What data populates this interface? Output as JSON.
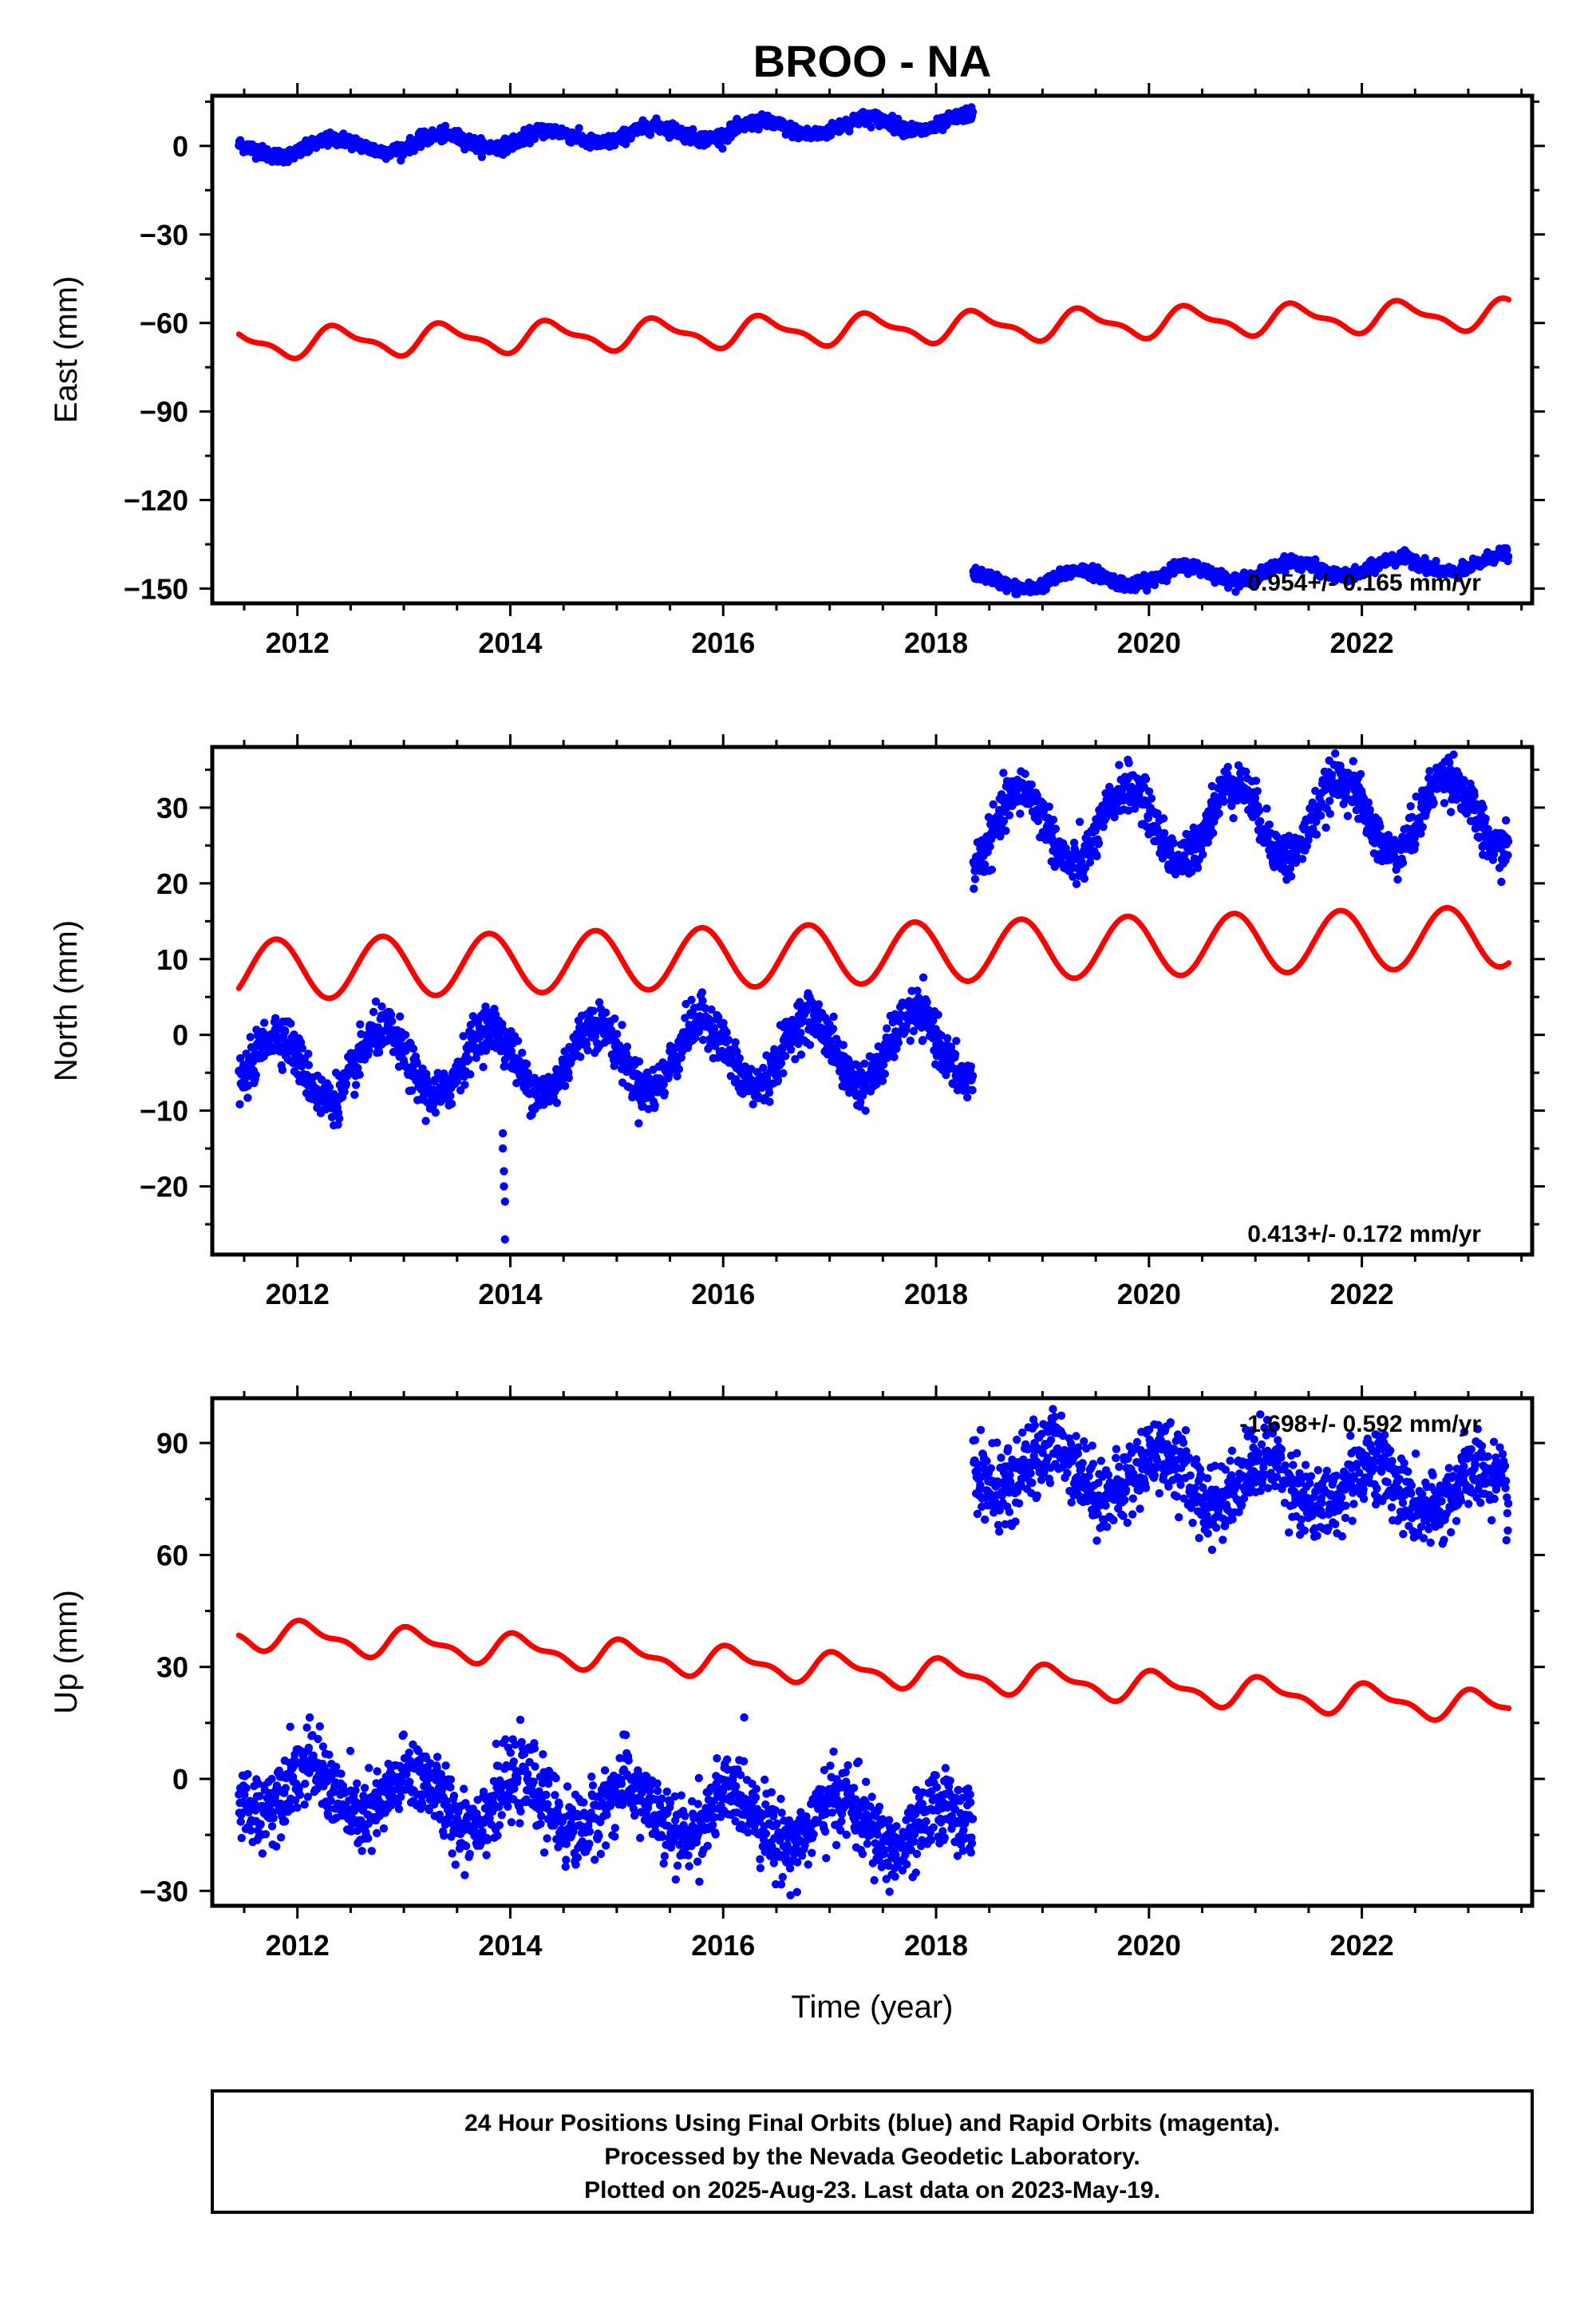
{
  "title": "BROO - NA",
  "xlabel": "Time (year)",
  "footer": {
    "line1": "24 Hour Positions Using Final Orbits (blue) and Rapid Orbits (magenta).",
    "line2": "Processed by the Nevada Geodetic Laboratory.",
    "line3": "Plotted on 2025-Aug-23. Last data on 2023-May-19."
  },
  "colors": {
    "final_orbits": "#0000ff",
    "model_fit": "#ff0000",
    "axes": "#000000"
  },
  "chart_data": [
    {
      "type": "scatter",
      "ylabel": "East (mm)",
      "annotation": "0.954+/- 0.165 mm/yr",
      "xlim": [
        2011.2,
        2023.6
      ],
      "ylim": [
        -155,
        17
      ],
      "xticks": [
        2012,
        2014,
        2016,
        2018,
        2020,
        2022
      ],
      "yticks": [
        0,
        -30,
        -60,
        -90,
        -120,
        -150
      ],
      "ytick_labels": [
        "0",
        "−30",
        "−60",
        "−90",
        "−120",
        "−150"
      ],
      "segments": [
        {
          "x_start": 2011.45,
          "x_end": 2018.35,
          "y_start": -1.5,
          "y_end": 8.5,
          "amp": 2.5,
          "noise": 1.1,
          "phase": 0.1
        },
        {
          "x_start": 2018.35,
          "x_end": 2023.38,
          "y_start": -148,
          "y_end": -141,
          "amp": 2.8,
          "noise": 1.0,
          "phase": 0.1
        }
      ],
      "model": {
        "x_start": 2011.45,
        "x_end": 2023.38,
        "y_start": -67,
        "y_end": -57,
        "annual": 4.5,
        "semiannual": 1.8,
        "phase": 0.15
      },
      "annotation_pos": "bottom-right"
    },
    {
      "type": "scatter",
      "ylabel": "North (mm)",
      "annotation": "0.413+/- 0.172 mm/yr",
      "xlim": [
        2011.2,
        2023.6
      ],
      "ylim": [
        -29,
        38
      ],
      "xticks": [
        2012,
        2014,
        2016,
        2018,
        2020,
        2022
      ],
      "yticks": [
        30,
        20,
        10,
        0,
        -10,
        -20
      ],
      "ytick_labels": [
        "30",
        "20",
        "10",
        "0",
        "−10",
        "−20"
      ],
      "segments": [
        {
          "x_start": 2011.45,
          "x_end": 2018.35,
          "y_start": -4.5,
          "y_end": -1.5,
          "amp": 4.5,
          "noise": 1.5,
          "phase": 0.55
        },
        {
          "x_start": 2018.35,
          "x_end": 2023.38,
          "y_start": 27,
          "y_end": 29.5,
          "amp": 5.0,
          "noise": 1.5,
          "phase": 0.55
        }
      ],
      "outliers": [
        {
          "x": 2013.93,
          "y": -13
        },
        {
          "x": 2013.93,
          "y": -15
        },
        {
          "x": 2013.94,
          "y": -18
        },
        {
          "x": 2013.94,
          "y": -20
        },
        {
          "x": 2013.95,
          "y": -22
        },
        {
          "x": 2013.95,
          "y": -27
        }
      ],
      "model": {
        "x_start": 2011.45,
        "x_end": 2023.38,
        "y_start": 8.5,
        "y_end": 13,
        "annual": 4.0,
        "semiannual": 0.0,
        "phase": 0.55
      },
      "annotation_pos": "bottom-right"
    },
    {
      "type": "scatter",
      "ylabel": "Up (mm)",
      "annotation": "-1.698+/- 0.592 mm/yr",
      "xlim": [
        2011.2,
        2023.6
      ],
      "ylim": [
        -34,
        102
      ],
      "xticks": [
        2012,
        2014,
        2016,
        2018,
        2020,
        2022
      ],
      "yticks": [
        90,
        60,
        30,
        0,
        -30
      ],
      "ytick_labels": [
        "90",
        "60",
        "30",
        "0",
        "−30"
      ],
      "segments": [
        {
          "x_start": 2011.45,
          "x_end": 2018.35,
          "y_start": -2,
          "y_end": -14,
          "amp": 6.5,
          "noise": 5.0,
          "phase": 0.85
        },
        {
          "x_start": 2018.35,
          "x_end": 2023.38,
          "y_start": 84,
          "y_end": 76,
          "amp": 6.5,
          "noise": 5.0,
          "phase": 0.85
        }
      ],
      "model": {
        "x_start": 2011.45,
        "x_end": 2023.38,
        "y_start": 39,
        "y_end": 19,
        "annual": 3.5,
        "semiannual": 1.6,
        "phase": 0.85
      },
      "annotation_pos": "top-right"
    }
  ]
}
